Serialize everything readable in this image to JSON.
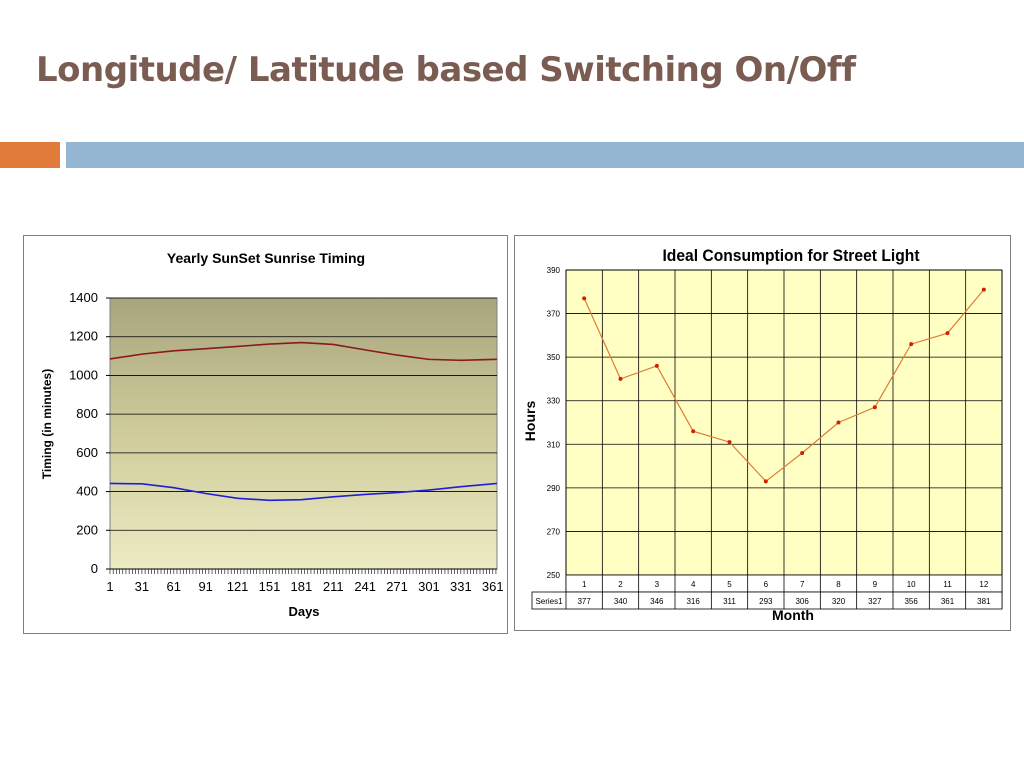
{
  "slide": {
    "title": "Longitude/ Latitude based Switching On/Off",
    "colors": {
      "title": "#7a5c52",
      "accent_orange": "#e07b39",
      "accent_blue": "#94b6d2"
    }
  },
  "chart_data": [
    {
      "type": "line",
      "title": "Yearly SunSet Sunrise Timing",
      "xlabel": "Days",
      "ylabel": "Timing (in minutes)",
      "xlim": [
        1,
        365
      ],
      "ylim": [
        0,
        1400
      ],
      "x_ticks": [
        "1",
        "31",
        "61",
        "91",
        "121",
        "151",
        "181",
        "211",
        "241",
        "271",
        "301",
        "331",
        "361"
      ],
      "y_ticks": [
        "0",
        "200",
        "400",
        "600",
        "800",
        "1000",
        "1200",
        "1400"
      ],
      "grid": true,
      "x": [
        1,
        31,
        61,
        91,
        121,
        151,
        181,
        211,
        241,
        271,
        301,
        331,
        365
      ],
      "series": [
        {
          "color": "#8b1a1a",
          "values": [
            1085,
            1110,
            1127,
            1138,
            1150,
            1162,
            1170,
            1160,
            1132,
            1105,
            1083,
            1078,
            1083
          ]
        },
        {
          "color": "#1f1fd8",
          "values": [
            442,
            440,
            420,
            390,
            365,
            355,
            358,
            373,
            385,
            395,
            408,
            425,
            442
          ]
        }
      ]
    },
    {
      "type": "line",
      "title": "Ideal Consumption for Street Light",
      "xlabel": "Month",
      "ylabel": "Hours",
      "ylim": [
        250,
        390
      ],
      "y_ticks": [
        "250",
        "270",
        "290",
        "310",
        "330",
        "350",
        "370",
        "390"
      ],
      "categories": [
        "1",
        "2",
        "3",
        "4",
        "5",
        "6",
        "7",
        "8",
        "9",
        "10",
        "11",
        "12"
      ],
      "grid": true,
      "series": [
        {
          "name": "Series1",
          "color": "#e07b39",
          "values": [
            377,
            340,
            346,
            316,
            311,
            293,
            306,
            320,
            327,
            356,
            361,
            381
          ]
        }
      ],
      "table": {
        "row_label": "Series1",
        "values": [
          "377",
          "340",
          "346",
          "316",
          "311",
          "293",
          "306",
          "320",
          "327",
          "356",
          "361",
          "381"
        ]
      }
    }
  ]
}
